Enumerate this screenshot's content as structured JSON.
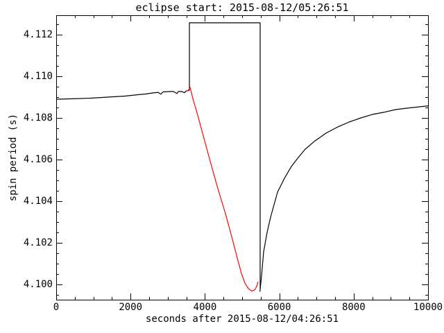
{
  "colors": {
    "foreground": "#000000",
    "eclipse_series": "#ff0000",
    "background": "#ffffff"
  },
  "chart_data": {
    "type": "line",
    "title": "eclipse start: 2015-08-12/05:26:51",
    "xlabel": "seconds after 2015-08-12/04:26:51",
    "ylabel": "spin period (s)",
    "xlim": [
      0,
      10000
    ],
    "ylim": [
      4.099267,
      4.112933
    ],
    "grid": false,
    "legend": "none",
    "x_major_ticks": [
      0,
      2000,
      4000,
      6000,
      8000,
      10000
    ],
    "x_tick_labels": [
      "0",
      "2000",
      "4000",
      "6000",
      "8000",
      "10000"
    ],
    "x_minor_step": 500,
    "y_major_ticks": [
      4.1,
      4.102,
      4.104,
      4.106,
      4.108,
      4.11,
      4.112
    ],
    "y_tick_labels": [
      "4.100",
      "4.102",
      "4.104",
      "4.106",
      "4.108",
      "4.110",
      "4.112"
    ],
    "y_minor_step": 0.0005,
    "series": [
      {
        "name": "spin-period-pre-eclipse",
        "color": "#000000",
        "points": [
          [
            0,
            4.1089
          ],
          [
            448,
            4.10892
          ],
          [
            914,
            4.10895
          ],
          [
            1381,
            4.109
          ],
          [
            1847,
            4.10905
          ],
          [
            2220,
            4.10912
          ],
          [
            2407,
            4.10915
          ],
          [
            2593,
            4.1092
          ],
          [
            2743,
            4.10923
          ],
          [
            2812,
            4.10914
          ],
          [
            2873,
            4.10925
          ],
          [
            3060,
            4.10927
          ],
          [
            3153,
            4.10927
          ],
          [
            3246,
            4.10917
          ],
          [
            3284,
            4.10927
          ],
          [
            3377,
            4.10927
          ],
          [
            3451,
            4.10921
          ],
          [
            3489,
            4.10929
          ],
          [
            3563,
            4.10932
          ],
          [
            3582,
            4.10933
          ]
        ]
      },
      {
        "name": "eclipse-window-marker",
        "color": "#000000",
        "points": [
          [
            3582,
            4.10933
          ],
          [
            3582,
            4.11257
          ],
          [
            5485,
            4.11257
          ],
          [
            5485,
            4.09977
          ]
        ]
      },
      {
        "name": "spin-period-during-eclipse",
        "color": "#ff0000",
        "points": [
          [
            3545,
            4.1093
          ],
          [
            3601,
            4.10947
          ],
          [
            3675,
            4.10893
          ],
          [
            3806,
            4.10813
          ],
          [
            3993,
            4.1069
          ],
          [
            4179,
            4.10567
          ],
          [
            4366,
            4.1045
          ],
          [
            4552,
            4.1034
          ],
          [
            4739,
            4.10217
          ],
          [
            4869,
            4.10127
          ],
          [
            4981,
            4.10053
          ],
          [
            5075,
            4.10007
          ],
          [
            5168,
            4.0998
          ],
          [
            5261,
            4.09968
          ],
          [
            5336,
            4.09973
          ],
          [
            5392,
            4.0999
          ],
          [
            5429,
            4.10013
          ]
        ]
      },
      {
        "name": "spin-period-recovery",
        "color": "#000000",
        "points": [
          [
            5480,
            4.09965
          ],
          [
            5522,
            4.1004
          ],
          [
            5578,
            4.10157
          ],
          [
            5672,
            4.1025
          ],
          [
            5765,
            4.10323
          ],
          [
            5858,
            4.10383
          ],
          [
            5951,
            4.10443
          ],
          [
            6138,
            4.1051
          ],
          [
            6325,
            4.10567
          ],
          [
            6511,
            4.1061
          ],
          [
            6698,
            4.1065
          ],
          [
            6940,
            4.10687
          ],
          [
            7257,
            4.10727
          ],
          [
            7575,
            4.10757
          ],
          [
            7873,
            4.1078
          ],
          [
            8190,
            4.108
          ],
          [
            8507,
            4.10817
          ],
          [
            8806,
            4.10827
          ],
          [
            9123,
            4.1084
          ],
          [
            9440,
            4.10847
          ],
          [
            9739,
            4.10853
          ],
          [
            10000,
            4.10858
          ]
        ]
      }
    ]
  }
}
